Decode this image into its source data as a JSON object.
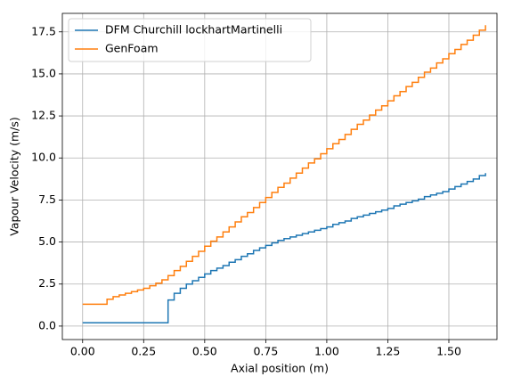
{
  "chart_data": {
    "type": "line",
    "drawstyle": "steps-post",
    "xlabel": "Axial position (m)",
    "ylabel": "Vapour Velocity (m/s)",
    "x": [
      0,
      0.025,
      0.05,
      0.075,
      0.1,
      0.125,
      0.15,
      0.175,
      0.2,
      0.225,
      0.25,
      0.275,
      0.3,
      0.325,
      0.35,
      0.375,
      0.4,
      0.425,
      0.45,
      0.475,
      0.5,
      0.525,
      0.55,
      0.575,
      0.6,
      0.625,
      0.65,
      0.675,
      0.7,
      0.725,
      0.75,
      0.775,
      0.8,
      0.825,
      0.85,
      0.875,
      0.9,
      0.925,
      0.95,
      0.975,
      1.0,
      1.025,
      1.05,
      1.075,
      1.1,
      1.125,
      1.15,
      1.175,
      1.2,
      1.225,
      1.25,
      1.275,
      1.3,
      1.325,
      1.35,
      1.375,
      1.4,
      1.425,
      1.45,
      1.475,
      1.5,
      1.525,
      1.55,
      1.575,
      1.6,
      1.625,
      1.65
    ],
    "series": [
      {
        "name": "DFM Churchill lockhartMartinelli",
        "color": "#1f77b4",
        "values": [
          0.2,
          0.2,
          0.2,
          0.2,
          0.2,
          0.2,
          0.2,
          0.2,
          0.2,
          0.2,
          0.2,
          0.2,
          0.2,
          0.2,
          1.55,
          1.95,
          2.25,
          2.5,
          2.7,
          2.9,
          3.1,
          3.3,
          3.45,
          3.6,
          3.8,
          3.95,
          4.15,
          4.3,
          4.5,
          4.65,
          4.8,
          4.95,
          5.1,
          5.2,
          5.3,
          5.4,
          5.5,
          5.6,
          5.7,
          5.8,
          5.9,
          6.05,
          6.15,
          6.25,
          6.4,
          6.5,
          6.6,
          6.7,
          6.8,
          6.9,
          7.0,
          7.15,
          7.25,
          7.35,
          7.45,
          7.55,
          7.7,
          7.8,
          7.9,
          8.0,
          8.15,
          8.3,
          8.45,
          8.6,
          8.75,
          8.95,
          9.1
        ]
      },
      {
        "name": "GenFoam",
        "color": "#ff7f0e",
        "values": [
          1.3,
          1.3,
          1.3,
          1.3,
          1.6,
          1.75,
          1.85,
          1.95,
          2.05,
          2.15,
          2.25,
          2.4,
          2.55,
          2.75,
          3.0,
          3.3,
          3.55,
          3.85,
          4.15,
          4.45,
          4.75,
          5.05,
          5.3,
          5.6,
          5.9,
          6.2,
          6.5,
          6.75,
          7.05,
          7.35,
          7.65,
          7.95,
          8.25,
          8.5,
          8.8,
          9.1,
          9.4,
          9.7,
          9.95,
          10.25,
          10.55,
          10.85,
          11.1,
          11.4,
          11.7,
          12.0,
          12.25,
          12.55,
          12.85,
          13.1,
          13.4,
          13.7,
          13.95,
          14.25,
          14.5,
          14.8,
          15.1,
          15.35,
          15.65,
          15.9,
          16.2,
          16.45,
          16.75,
          17.0,
          17.3,
          17.6,
          17.9
        ]
      }
    ],
    "xlim": [
      -0.083,
      1.697
    ],
    "xticks": [
      {
        "value": 0,
        "label": "0.00"
      },
      0.25,
      {
        "value": 0.5,
        "label": "0.50"
      },
      0.75,
      {
        "value": 1.0,
        "label": "1.00"
      },
      1.25,
      {
        "value": 1.5,
        "label": "1.50"
      }
    ],
    "ylim": [
      -0.8,
      18.6
    ],
    "yticks": [
      {
        "value": 0,
        "label": "0.0"
      },
      2.5,
      {
        "value": 5,
        "label": "5.0"
      },
      7.5,
      {
        "value": 10,
        "label": "10.0"
      },
      12.5,
      {
        "value": 15,
        "label": "15.0"
      },
      17.5
    ],
    "grid": true,
    "legend": "upper left"
  }
}
